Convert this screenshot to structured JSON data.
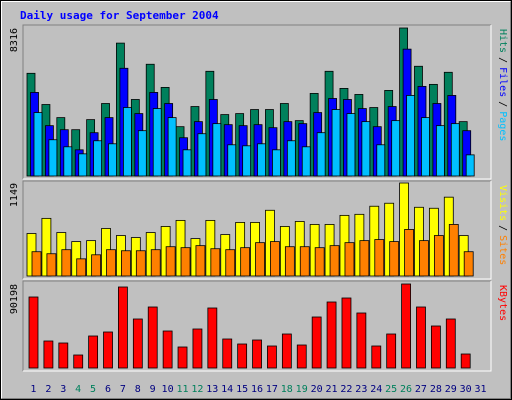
{
  "title": "Daily usage for September 2004",
  "legend_separator": "/",
  "chart_data": [
    {
      "type": "bar",
      "series": [
        {
          "name": "Hits",
          "color": "#00805c",
          "values": [
            5770,
            4017,
            3281,
            2602,
            3168,
            4073,
            7467,
            4299,
            6279,
            4978,
            2772,
            3903,
            5883,
            3451,
            3507,
            3734,
            3734,
            4073,
            3111,
            4639,
            5883,
            4922,
            4582,
            3847,
            4808,
            8316,
            6166,
            5148,
            5827,
            3055,
            null
          ]
        },
        {
          "name": "Files",
          "color": "#0000ff",
          "values": [
            4695,
            2829,
            2602,
            1471,
            2433,
            3281,
            6053,
            3507,
            4695,
            4073,
            2150,
            3055,
            4299,
            2885,
            2829,
            2885,
            2715,
            3055,
            2942,
            3564,
            4356,
            4299,
            3790,
            2772,
            3903,
            7128,
            5035,
            4073,
            4526,
            2546,
            null
          ]
        },
        {
          "name": "Pages",
          "color": "#00c0ff",
          "values": [
            3564,
            2037,
            1641,
            1245,
            1980,
            1810,
            3847,
            2546,
            3790,
            3281,
            1471,
            2376,
            2942,
            1754,
            1697,
            1810,
            1471,
            1980,
            1641,
            2433,
            3734,
            3507,
            3055,
            1754,
            3111,
            4526,
            3281,
            2829,
            2942,
            1188,
            null
          ]
        }
      ],
      "ylim": [
        0,
        8316
      ],
      "yticks": [
        8316
      ]
    },
    {
      "type": "bar",
      "series": [
        {
          "name": "Visits",
          "color": "#ffff00",
          "values": [
            525,
            712,
            537,
            425,
            437,
            587,
            500,
            475,
            537,
            612,
            687,
            462,
            687,
            512,
            662,
            662,
            812,
            612,
            674,
            637,
            637,
            749,
            762,
            862,
            899,
            1149,
            849,
            837,
            974,
            500,
            null
          ]
        },
        {
          "name": "Sites",
          "color": "#ff8000",
          "values": [
            300,
            275,
            325,
            212,
            262,
            325,
            312,
            312,
            325,
            362,
            350,
            375,
            337,
            325,
            350,
            412,
            425,
            362,
            362,
            350,
            375,
            412,
            437,
            450,
            425,
            575,
            437,
            500,
            637,
            300,
            null
          ]
        }
      ],
      "ylim": [
        0,
        1149
      ],
      "yticks": [
        1149
      ]
    },
    {
      "type": "bar",
      "categories": [
        "1",
        "2",
        "3",
        "4",
        "5",
        "6",
        "7",
        "8",
        "9",
        "10",
        "11",
        "12",
        "13",
        "14",
        "15",
        "16",
        "17",
        "18",
        "19",
        "20",
        "21",
        "22",
        "23",
        "24",
        "25",
        "26",
        "27",
        "28",
        "29",
        "30",
        "31"
      ],
      "category_label_colors": [
        "#000080",
        "#000080",
        "#000080",
        "#00805c",
        "#00805c",
        "#000080",
        "#000080",
        "#000080",
        "#000080",
        "#000080",
        "#00805c",
        "#00805c",
        "#000080",
        "#000080",
        "#000080",
        "#000080",
        "#000080",
        "#00805c",
        "#00805c",
        "#000080",
        "#000080",
        "#000080",
        "#000080",
        "#000080",
        "#00805c",
        "#00805c",
        "#000080",
        "#000080",
        "#000080",
        "#000080",
        "#000080"
      ],
      "series": [
        {
          "name": "KBytes",
          "color": "#ff0000",
          "values": [
            76240,
            28993,
            26845,
            13959,
            34362,
            38657,
            86978,
            52616,
            65502,
            39731,
            22550,
            41878,
            64428,
            31140,
            25771,
            30066,
            23624,
            36509,
            24697,
            54764,
            70871,
            75166,
            59059,
            23624,
            36509,
            90198,
            65502,
            45100,
            52616,
            15033,
            null
          ]
        }
      ],
      "ylim": [
        0,
        90198
      ],
      "yticks": [
        90198
      ]
    }
  ]
}
